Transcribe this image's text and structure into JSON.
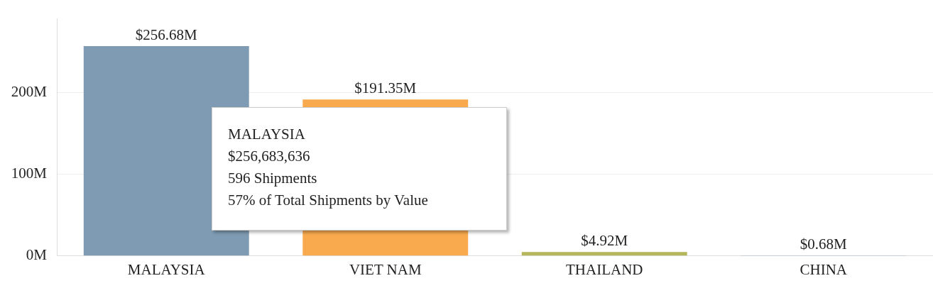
{
  "chart_data": {
    "type": "bar",
    "categories": [
      "MALAYSIA",
      "VIET NAM",
      "THAILAND",
      "CHINA"
    ],
    "values": [
      256.68,
      191.35,
      4.92,
      0.68
    ],
    "colors": [
      "#7f9bb3",
      "#f9aa4e",
      "#b5b55a",
      "#6f8fae"
    ],
    "value_labels": [
      "$256.68M",
      "$191.35M",
      "$4.92M",
      "$0.68M"
    ],
    "ylim": [
      0,
      290
    ],
    "yticks": [
      {
        "value": 0,
        "label": "0M"
      },
      {
        "value": 100,
        "label": "100M"
      },
      {
        "value": 200,
        "label": "200M"
      }
    ],
    "grid": "y",
    "legend": false,
    "annotations": [
      "MALAYSIA",
      "$256,683,636",
      "596 Shipments",
      "57% of Total Shipments by Value"
    ]
  }
}
